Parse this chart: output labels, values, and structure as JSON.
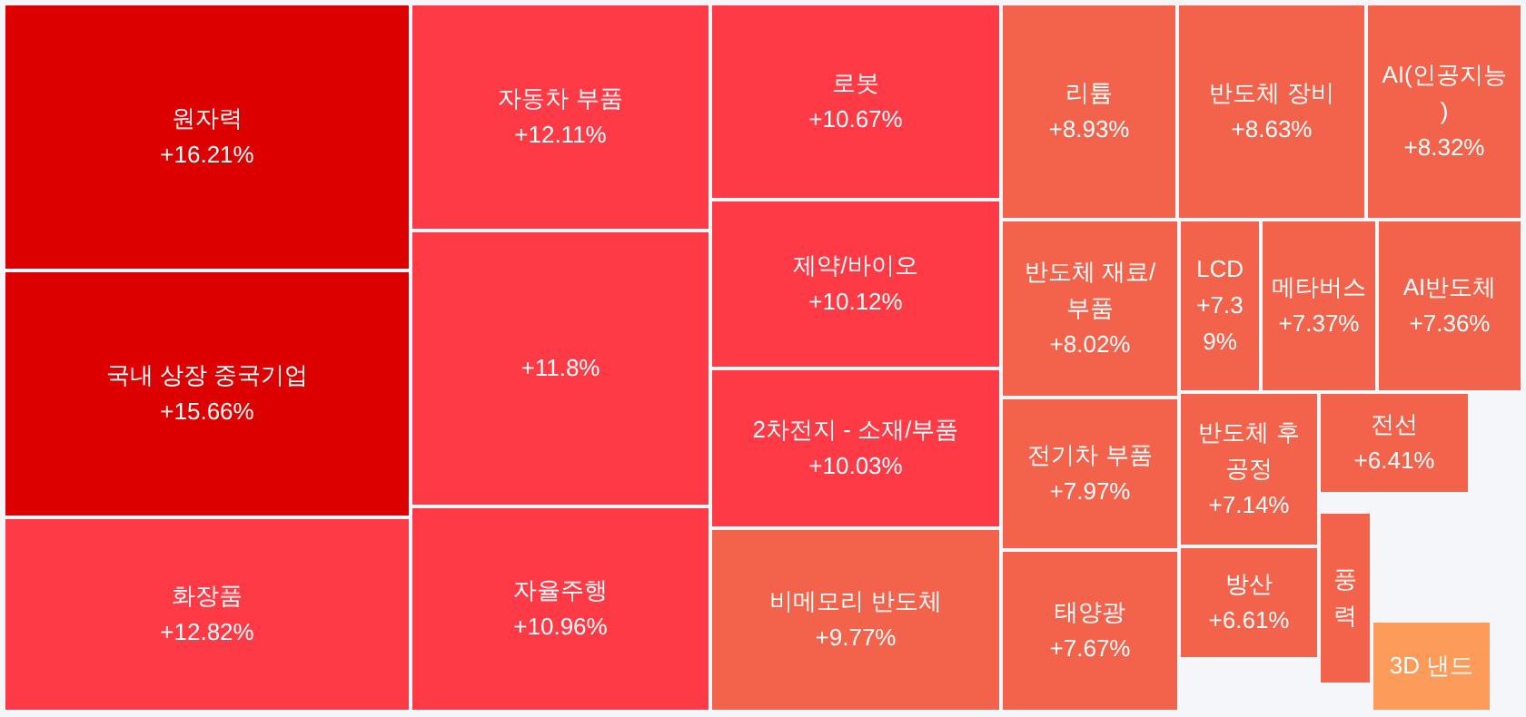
{
  "chart_data": {
    "type": "other",
    "categories": [
      "원자력",
      "국내 상장 중국기업",
      "화장품",
      "자동차 부품",
      null,
      "자율주행",
      "로봇",
      "제약/바이오",
      "2차전지 - 소재/부품",
      "비메모리 반도체",
      "리튬",
      "반도체 장비",
      "AI(인공지능)",
      "반도체 재료/부품",
      "LCD",
      "메타버스",
      "AI반도체",
      "전기차 부품",
      "반도체 후 공정",
      "전선",
      "태양광",
      "방산",
      "풍력",
      "3D 낸드"
    ],
    "values": [
      16.21,
      15.66,
      12.82,
      12.11,
      null,
      10.96,
      10.67,
      10.12,
      10.03,
      9.77,
      8.93,
      8.63,
      8.32,
      8.02,
      7.39,
      7.37,
      7.36,
      7.97,
      7.14,
      6.41,
      7.67,
      6.61,
      null,
      null
    ],
    "value_labels": [
      "+16.21%",
      "+15.66%",
      "+12.82%",
      "+12.11%",
      "+11.8%",
      "+10.96%",
      "+10.67%",
      "+10.12%",
      "+10.03%",
      "+9.77%",
      "+8.93%",
      "+8.63%",
      "+8.32%",
      "+8.02%",
      "+7.39%",
      "+7.37%",
      "+7.36%",
      "+7.97%",
      "+7.14%",
      "+6.41%",
      "+7.67%",
      "+6.61%",
      null,
      null
    ],
    "colors": [
      "#dc0000",
      "#dc0000",
      "#fe3a46",
      "#fe3a46",
      "#fe3a46",
      "#fe3a46",
      "#fe3a46",
      "#fe3a46",
      "#fe3a46",
      "#f3634c",
      "#f3634c",
      "#f3634c",
      "#f3634c",
      "#f3634c",
      "#f3634c",
      "#f3634c",
      "#f3634c",
      "#f3634c",
      "#f3634c",
      "#f3634c",
      "#f3634c",
      "#f3634c",
      "#f3634c",
      "#fd9b5b"
    ]
  }
}
